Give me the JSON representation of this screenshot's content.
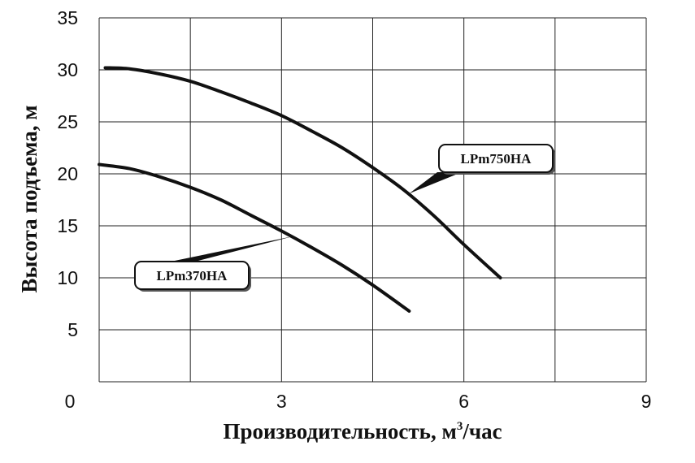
{
  "chart_data": {
    "type": "line",
    "xlabel_main": "Производительность, м",
    "xlabel_sup": "3",
    "xlabel_tail": "/час",
    "ylabel": "Высота подъема, м",
    "xlim": [
      0,
      9
    ],
    "ylim": [
      0,
      35
    ],
    "x_ticks": [
      0,
      3,
      6,
      9
    ],
    "y_ticks": [
      5,
      10,
      15,
      20,
      25,
      30,
      35
    ],
    "grid": true,
    "series": [
      {
        "name": "LPm750HA",
        "x": [
          0.1,
          0.5,
          1.0,
          1.5,
          2.0,
          2.5,
          3.0,
          3.5,
          4.0,
          4.5,
          5.0,
          5.5,
          6.0,
          6.6
        ],
        "y": [
          30.2,
          30.1,
          29.6,
          28.9,
          27.9,
          26.8,
          25.6,
          24.1,
          22.5,
          20.6,
          18.5,
          16.0,
          13.2,
          10.0
        ]
      },
      {
        "name": "LPm370HA",
        "x": [
          0.0,
          0.5,
          1.0,
          1.5,
          2.0,
          2.5,
          3.0,
          3.5,
          4.0,
          4.5,
          5.1
        ],
        "y": [
          20.9,
          20.5,
          19.7,
          18.7,
          17.5,
          16.0,
          14.5,
          12.9,
          11.2,
          9.3,
          6.8
        ]
      }
    ]
  }
}
